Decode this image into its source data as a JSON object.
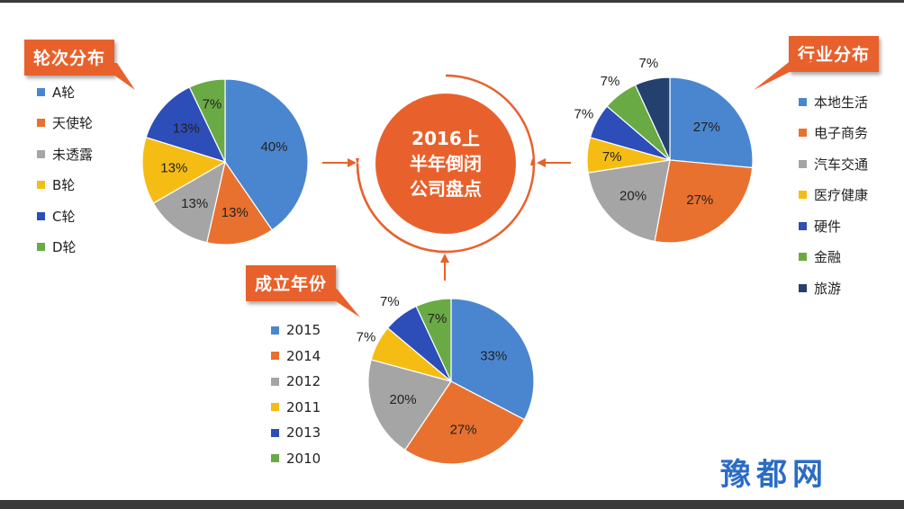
{
  "center_title": [
    "2016上",
    "半年倒闭",
    "公司盘点"
  ],
  "watermark": "豫都网",
  "charts": {
    "round": {
      "callout": "轮次分布",
      "legend": [
        "A轮",
        "天使轮",
        "未透露",
        "B轮",
        "C轮",
        "D轮"
      ]
    },
    "industry": {
      "callout": "行业分布",
      "legend": [
        "本地生活",
        "电子商务",
        "汽车交通",
        "医疗健康",
        "硬件",
        "金融",
        "旅游"
      ]
    },
    "year": {
      "callout": "成立年份",
      "legend": [
        "2015",
        "2014",
        "2012",
        "2011",
        "2013",
        "2010"
      ]
    }
  },
  "colors": {
    "blue": "#4a86cf",
    "orange": "#e8712f",
    "gray": "#a5a5a5",
    "yellow": "#f5bd14",
    "darkblue": "#2d4db8",
    "green": "#6aaa45",
    "navy": "#23406e",
    "accent": "#e8612c"
  },
  "chart_data": [
    {
      "type": "pie",
      "title": "轮次分布",
      "categories": [
        "A轮",
        "天使轮",
        "未透露",
        "B轮",
        "C轮",
        "D轮"
      ],
      "values": [
        40,
        13,
        13,
        13,
        13,
        7
      ],
      "labels": [
        "40%",
        "13%",
        "13%",
        "13%",
        "13%",
        "7%"
      ],
      "colors": [
        "#4a86cf",
        "#e8712f",
        "#a5a5a5",
        "#f5bd14",
        "#2d4db8",
        "#6aaa45"
      ]
    },
    {
      "type": "pie",
      "title": "行业分布",
      "categories": [
        "本地生活",
        "电子商务",
        "汽车交通",
        "医疗健康",
        "硬件",
        "金融",
        "旅游"
      ],
      "values": [
        27,
        27,
        20,
        7,
        7,
        7,
        7
      ],
      "labels": [
        "27%",
        "27%",
        "20%",
        "7%",
        "7%",
        "7%",
        "7%"
      ],
      "colors": [
        "#4a86cf",
        "#e8712f",
        "#a5a5a5",
        "#f5bd14",
        "#2d4db8",
        "#6aaa45",
        "#23406e"
      ]
    },
    {
      "type": "pie",
      "title": "成立年份",
      "categories": [
        "2015",
        "2014",
        "2012",
        "2011",
        "2013",
        "2010"
      ],
      "values": [
        33,
        27,
        20,
        7,
        7,
        7
      ],
      "labels": [
        "33%",
        "27%",
        "20%",
        "7%",
        "7%",
        "7%"
      ],
      "colors": [
        "#4a86cf",
        "#e8712f",
        "#a5a5a5",
        "#f5bd14",
        "#2d4db8",
        "#6aaa45"
      ]
    }
  ]
}
